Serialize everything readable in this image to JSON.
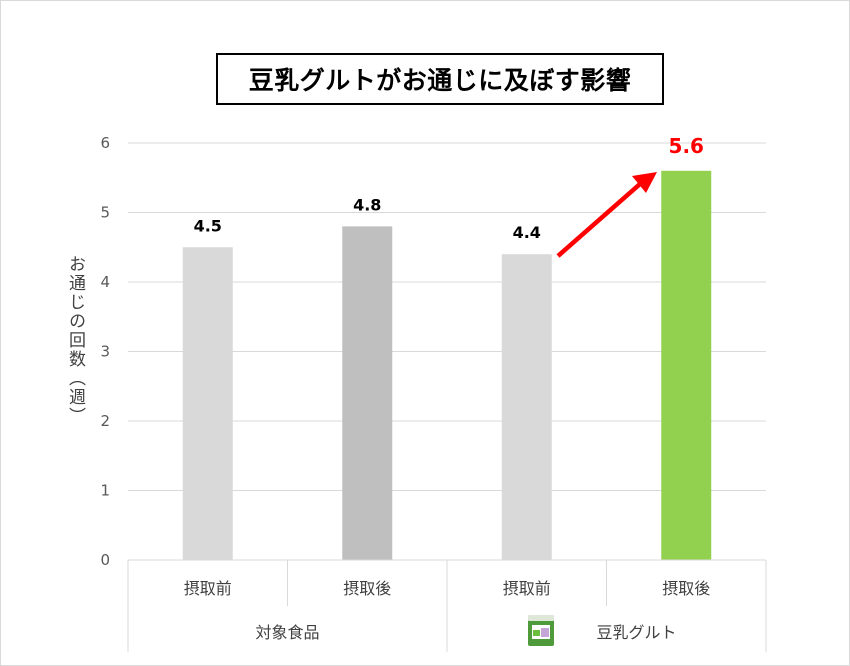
{
  "chart_data": {
    "type": "bar",
    "title": "豆乳グルトがお通じに及ぼす影響",
    "ylabel": "お通じの回数（週）",
    "ylim": [
      0,
      6
    ],
    "yticks": [
      "0",
      "1",
      "2",
      "3",
      "4",
      "5",
      "6"
    ],
    "grid": true,
    "categories": [
      "摂取前",
      "摂取後",
      "摂取前",
      "摂取後"
    ],
    "groups": [
      {
        "label": "対象食品",
        "categories": [
          "摂取前",
          "摂取後"
        ]
      },
      {
        "label": "豆乳グルト",
        "categories": [
          "摂取前",
          "摂取後"
        ]
      }
    ],
    "values": [
      4.5,
      4.8,
      4.4,
      5.6
    ],
    "data_labels": [
      "4.5",
      "4.8",
      "4.4",
      "5.6"
    ],
    "bar_colors": [
      "#d9d9d9",
      "#bfbfbf",
      "#d9d9d9",
      "#92d050"
    ],
    "highlight_label_color": "#ff0000",
    "annotation": "red-arrow-up"
  }
}
